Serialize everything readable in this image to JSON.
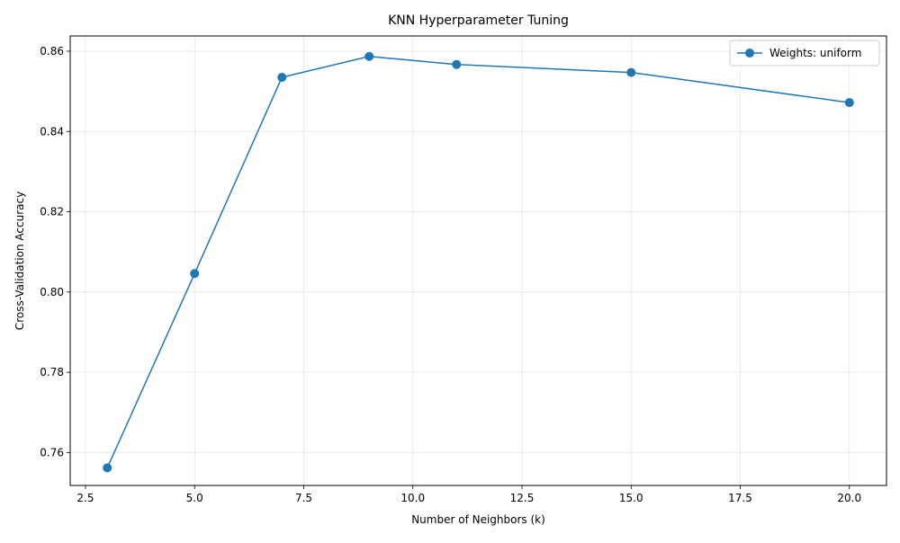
{
  "chart_data": {
    "type": "line",
    "title": "KNN Hyperparameter Tuning",
    "xlabel": "Number of Neighbors (k)",
    "ylabel": "Cross-Validation Accuracy",
    "xlim": [
      2.15,
      20.85
    ],
    "ylim": [
      0.7518,
      0.8638
    ],
    "x_ticks": [
      2.5,
      5.0,
      7.5,
      10.0,
      12.5,
      15.0,
      17.5,
      20.0
    ],
    "x_tick_labels": [
      "2.5",
      "5.0",
      "7.5",
      "10.0",
      "12.5",
      "15.0",
      "17.5",
      "20.0"
    ],
    "y_ticks": [
      0.76,
      0.78,
      0.8,
      0.82,
      0.84,
      0.86
    ],
    "y_tick_labels": [
      "0.76",
      "0.78",
      "0.80",
      "0.82",
      "0.84",
      "0.86"
    ],
    "grid": true,
    "legend_position": "top-right",
    "series": [
      {
        "name": "Weights: uniform",
        "color": "#1f77b4",
        "marker": "circle",
        "x": [
          3,
          5,
          7,
          9,
          11,
          15,
          20
        ],
        "y": [
          0.7562,
          0.8046,
          0.8535,
          0.8587,
          0.8567,
          0.8547,
          0.8472
        ]
      }
    ]
  }
}
